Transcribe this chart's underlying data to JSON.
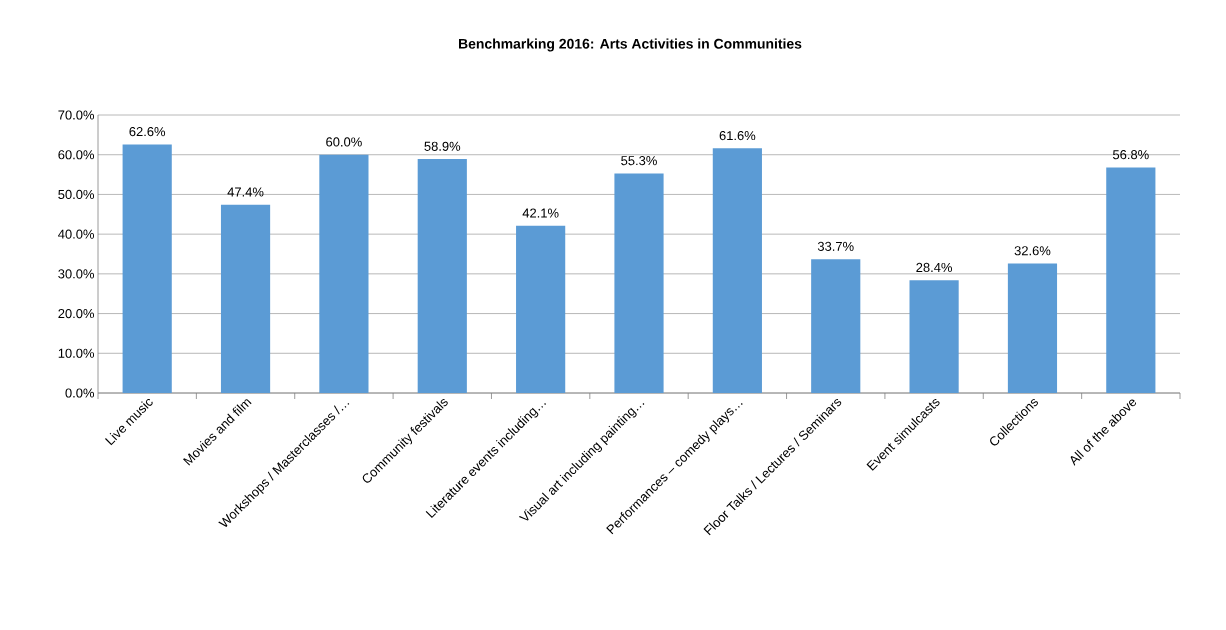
{
  "chart_data": {
    "type": "bar",
    "title": "Benchmarking  2016:  Arts Activities in Communities",
    "categories": [
      "Live music",
      "Movies and film",
      "Workshops / Masterclasses /…",
      "Community festivals",
      "Literature events including…",
      "Visual art including painting…",
      "Performances – comedy plays…",
      "Floor Talks / Lectures / Seminars",
      "Event simulcasts",
      "Collections",
      "All of the above"
    ],
    "values": [
      62.6,
      47.4,
      60.0,
      58.9,
      42.1,
      55.3,
      61.6,
      33.7,
      28.4,
      32.6,
      56.8
    ],
    "value_labels": [
      "62.6%",
      "47.4%",
      "60.0%",
      "58.9%",
      "42.1%",
      "55.3%",
      "61.6%",
      "33.7%",
      "28.4%",
      "32.6%",
      "56.8%"
    ],
    "color": "#5b9bd5",
    "ylim": [
      0,
      70
    ],
    "yticks": [
      {
        "value": 0,
        "label": "0.0%"
      },
      {
        "value": 10,
        "label": "10.0%"
      },
      {
        "value": 20,
        "label": "20.0%"
      },
      {
        "value": 30,
        "label": "30.0%"
      },
      {
        "value": 40,
        "label": "40.0%"
      },
      {
        "value": 50,
        "label": "50.0%"
      },
      {
        "value": 60,
        "label": "60.0%"
      },
      {
        "value": 70,
        "label": "70.0%"
      }
    ],
    "grid": "y"
  }
}
